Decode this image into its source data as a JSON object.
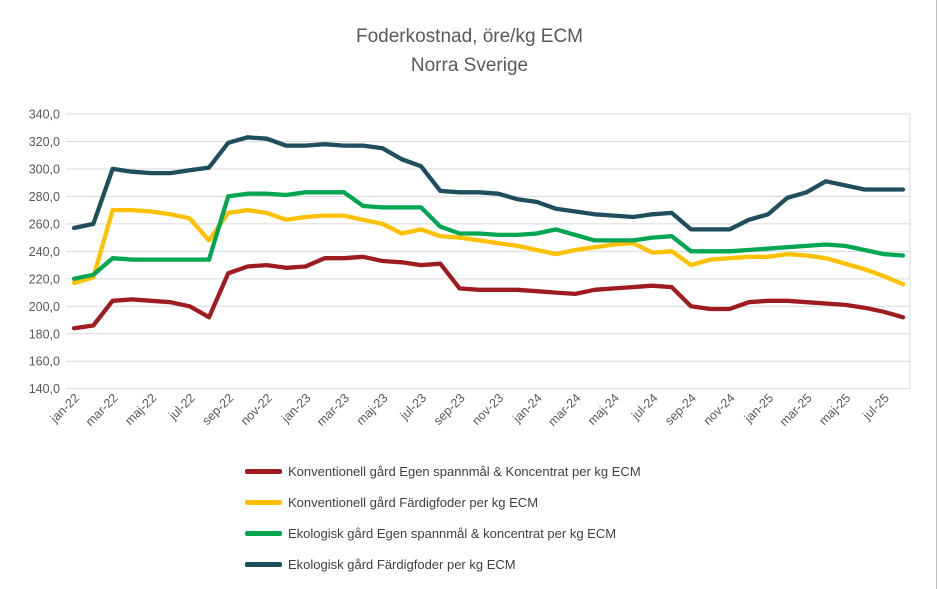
{
  "title": {
    "line1": "Foderkostnad, öre/kg ECM",
    "line2": "Norra Sverige"
  },
  "colors": {
    "background": "#ffffff",
    "grid": "#d9d9d9",
    "axis_text": "#595959",
    "title_text": "#595959",
    "legend_text": "#3f3f3f",
    "border": "#bfbfbf"
  },
  "chart_data": {
    "type": "line",
    "title": "Foderkostnad, öre/kg ECM Norra Sverige",
    "xlabel": "",
    "ylabel": "",
    "ylim": [
      140,
      340
    ],
    "y_tick_step": 20,
    "y_tick_labels": [
      "340,0",
      "320,0",
      "300,0",
      "280,0",
      "260,0",
      "240,0",
      "220,0",
      "200,0",
      "180,0",
      "160,0",
      "140,0"
    ],
    "grid": "horizontal",
    "legend_position": "bottom-left",
    "categories": [
      "jan-22",
      "feb-22",
      "mar-22",
      "apr-22",
      "maj-22",
      "jun-22",
      "jul-22",
      "aug-22",
      "sep-22",
      "okt-22",
      "nov-22",
      "dec-22",
      "jan-23",
      "feb-23",
      "mar-23",
      "apr-23",
      "maj-23",
      "jun-23",
      "jul-23",
      "aug-23",
      "sep-23",
      "okt-23",
      "nov-23",
      "dec-23",
      "jan-24",
      "feb-24",
      "mar-24",
      "apr-24",
      "maj-24",
      "jun-24",
      "jul-24",
      "aug-24",
      "sep-24",
      "okt-24",
      "nov-24",
      "dec-24",
      "jan-25",
      "feb-25",
      "mar-25",
      "apr-25",
      "maj-25",
      "jun-25",
      "jul-25",
      "aug-25"
    ],
    "x_tick_labels_shown": [
      "jan-22",
      "mar-22",
      "maj-22",
      "jul-22",
      "sep-22",
      "nov-22",
      "jan-23",
      "mar-23",
      "maj-23",
      "jul-23",
      "sep-23",
      "nov-23",
      "jan-24",
      "mar-24",
      "maj-24",
      "jul-24",
      "sep-24",
      "nov-24",
      "jan-25",
      "mar-25",
      "maj-25",
      "jul-25"
    ],
    "series": [
      {
        "name": "Konventionell gård Egen spannmål & Koncentrat per kg ECM",
        "color": "#9e1c21",
        "values": [
          184,
          186,
          204,
          205,
          204,
          203,
          200,
          192,
          224,
          229,
          230,
          228,
          229,
          235,
          235,
          236,
          233,
          232,
          230,
          231,
          213,
          212,
          212,
          212,
          211,
          210,
          209,
          212,
          213,
          214,
          215,
          214,
          200,
          198,
          198,
          203,
          204,
          204,
          203,
          202,
          201,
          199,
          196,
          192
        ]
      },
      {
        "name": "Konventionell gård Färdigfoder per kg ECM",
        "color": "#ffc000",
        "values": [
          217,
          221,
          270,
          270,
          269,
          267,
          264,
          248,
          268,
          270,
          268,
          263,
          265,
          266,
          266,
          263,
          260,
          253,
          256,
          251,
          250,
          248,
          246,
          244,
          241,
          238,
          241,
          243,
          245,
          246,
          239,
          240,
          230,
          234,
          235,
          236,
          236,
          238,
          237,
          235,
          231,
          227,
          222,
          216
        ]
      },
      {
        "name": "Ekologisk gård Egen spannmål & koncentrat per kg ECM",
        "color": "#00a651",
        "values": [
          220,
          223,
          235,
          234,
          234,
          234,
          234,
          234,
          280,
          282,
          282,
          281,
          283,
          283,
          283,
          273,
          272,
          272,
          272,
          258,
          253,
          253,
          252,
          252,
          253,
          256,
          252,
          248,
          248,
          248,
          250,
          251,
          240,
          240,
          240,
          241,
          242,
          243,
          244,
          245,
          244,
          241,
          238,
          237
        ]
      },
      {
        "name": "Ekologisk gård Färdigfoder per kg ECM",
        "color": "#1f4e5c",
        "values": [
          257,
          260,
          300,
          298,
          297,
          297,
          299,
          301,
          319,
          323,
          322,
          317,
          317,
          318,
          317,
          317,
          315,
          307,
          302,
          284,
          283,
          283,
          282,
          278,
          276,
          271,
          269,
          267,
          266,
          265,
          267,
          268,
          256,
          256,
          256,
          263,
          267,
          279,
          283,
          291,
          288,
          285,
          285,
          285
        ]
      }
    ]
  }
}
